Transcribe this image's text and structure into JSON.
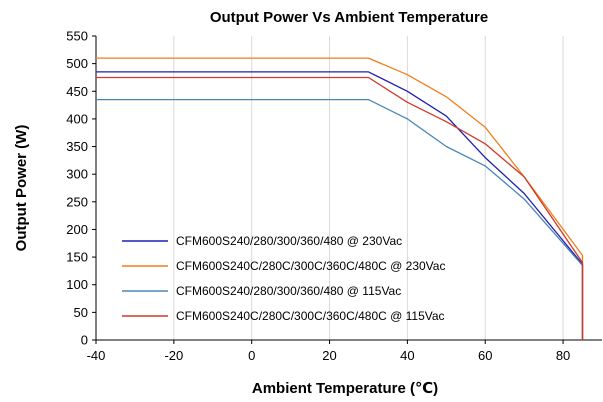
{
  "chart_data": {
    "type": "line",
    "title": "Output Power Vs Ambient Temperature",
    "xlabel": "Ambient Temperature (℃)",
    "ylabel": "Output Power (W)",
    "xlim": [
      -40,
      90
    ],
    "ylim": [
      0,
      550
    ],
    "x_ticks": [
      -40,
      -20,
      0,
      20,
      40,
      60,
      80
    ],
    "y_ticks": [
      0,
      50,
      100,
      150,
      200,
      250,
      300,
      350,
      400,
      450,
      500,
      550
    ],
    "grid": "vertical",
    "legend_position": "bottom-left",
    "series": [
      {
        "name": "CFM600S240/280/300/360/480 @ 230Vac",
        "color": "#1f1fb4",
        "points": [
          [
            -40,
            485
          ],
          [
            30,
            485
          ],
          [
            40,
            450
          ],
          [
            50,
            405
          ],
          [
            60,
            330
          ],
          [
            70,
            265
          ],
          [
            85,
            137
          ],
          [
            85,
            0
          ]
        ]
      },
      {
        "name": "CFM600S240C/280C/300C/360C/480C @ 230Vac",
        "color": "#f07f1a",
        "points": [
          [
            -40,
            510
          ],
          [
            30,
            510
          ],
          [
            40,
            480
          ],
          [
            50,
            440
          ],
          [
            60,
            385
          ],
          [
            70,
            295
          ],
          [
            85,
            153
          ],
          [
            85,
            0
          ]
        ]
      },
      {
        "name": "CFM600S240/280/300/360/480 @ 115Vac",
        "color": "#4a86b5",
        "points": [
          [
            -40,
            435
          ],
          [
            30,
            435
          ],
          [
            40,
            400
          ],
          [
            50,
            350
          ],
          [
            60,
            315
          ],
          [
            70,
            255
          ],
          [
            85,
            135
          ],
          [
            85,
            0
          ]
        ]
      },
      {
        "name": "CFM600S240C/280C/300C/360C/480C @ 115Vac",
        "color": "#cf3a2a",
        "points": [
          [
            -40,
            475
          ],
          [
            30,
            475
          ],
          [
            40,
            430
          ],
          [
            50,
            395
          ],
          [
            60,
            355
          ],
          [
            70,
            295
          ],
          [
            85,
            140
          ],
          [
            85,
            0
          ]
        ]
      }
    ]
  }
}
